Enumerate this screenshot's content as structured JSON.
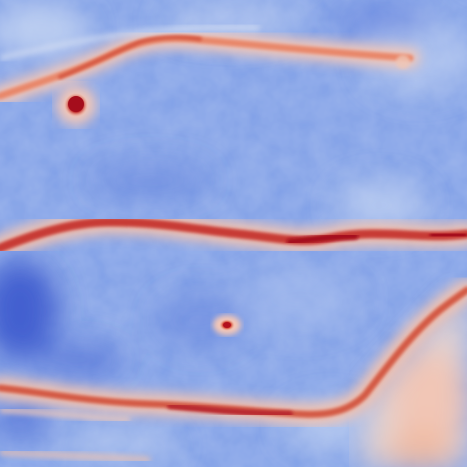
{
  "image": {
    "kind": "diverging-colormap-heatmap",
    "colormap": {
      "low": "#3f5ccf",
      "mid_low": "#8fb0ee",
      "mid": "#dde4ef",
      "mid_high": "#f0b59a",
      "high": "#b3111f"
    },
    "palette": {
      "field_blue": "#7f9fe7",
      "deep_blue": "#3f5ccf",
      "pale_blue": "#c8d7f2",
      "vessel_red": "#b8282d",
      "vessel_orange": "#e8876b",
      "warm_patch": "#f2c4b2"
    },
    "features": [
      "upper-curved-vessel",
      "middle-horizontal-vessel",
      "lower-curved-vessel",
      "round-red-spot-upper-left",
      "small-red-spot-center"
    ]
  }
}
